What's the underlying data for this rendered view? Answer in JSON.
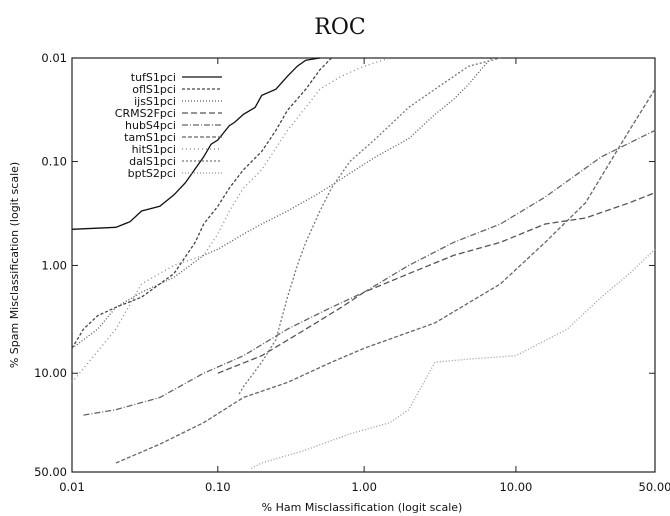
{
  "chart_data": {
    "type": "line",
    "title": "ROC",
    "xlabel": "% Ham Misclassification (logit scale)",
    "ylabel": "% Spam Misclassification (logit scale)",
    "x_ticks": [
      "0.01",
      "0.10",
      "1.00",
      "10.00",
      "50.00"
    ],
    "y_ticks": [
      "0.01",
      "0.10",
      "1.00",
      "10.00",
      "50.00"
    ],
    "xlim": [
      0.01,
      50
    ],
    "ylim": [
      0.01,
      50
    ],
    "y_inverted": true,
    "scale": "logit",
    "legend_position": "top-left",
    "grid": false,
    "series": [
      {
        "name": "tufS1pci",
        "color": "#111111",
        "dash": "",
        "points": [
          [
            0.01,
            0.45
          ],
          [
            0.02,
            0.43
          ],
          [
            0.025,
            0.38
          ],
          [
            0.03,
            0.3
          ],
          [
            0.04,
            0.27
          ],
          [
            0.05,
            0.21
          ],
          [
            0.06,
            0.16
          ],
          [
            0.08,
            0.09
          ],
          [
            0.09,
            0.068
          ],
          [
            0.1,
            0.062
          ],
          [
            0.12,
            0.045
          ],
          [
            0.13,
            0.042
          ],
          [
            0.15,
            0.035
          ],
          [
            0.18,
            0.03
          ],
          [
            0.2,
            0.023
          ],
          [
            0.25,
            0.02
          ],
          [
            0.3,
            0.015
          ],
          [
            0.35,
            0.012
          ],
          [
            0.4,
            0.0105
          ],
          [
            0.5,
            0.01
          ]
        ]
      },
      {
        "name": "oflS1pci",
        "color": "#444444",
        "dash": "3,2",
        "points": [
          [
            0.01,
            6.0
          ],
          [
            0.012,
            4.0
          ],
          [
            0.015,
            3.0
          ],
          [
            0.02,
            2.5
          ],
          [
            0.03,
            2.0
          ],
          [
            0.05,
            1.2
          ],
          [
            0.07,
            0.6
          ],
          [
            0.08,
            0.4
          ],
          [
            0.1,
            0.27
          ],
          [
            0.12,
            0.18
          ],
          [
            0.15,
            0.12
          ],
          [
            0.2,
            0.08
          ],
          [
            0.25,
            0.05
          ],
          [
            0.3,
            0.032
          ],
          [
            0.4,
            0.02
          ],
          [
            0.5,
            0.013
          ],
          [
            0.6,
            0.01
          ]
        ]
      },
      {
        "name": "ijsS1pci",
        "color": "#555555",
        "dash": "1,2",
        "points": [
          [
            0.01,
            6.0
          ],
          [
            0.015,
            4.0
          ],
          [
            0.02,
            2.5
          ],
          [
            0.03,
            1.8
          ],
          [
            0.05,
            1.3
          ],
          [
            0.08,
            0.8
          ],
          [
            0.1,
            0.7
          ],
          [
            0.15,
            0.5
          ],
          [
            0.2,
            0.4
          ],
          [
            0.3,
            0.3
          ],
          [
            0.5,
            0.2
          ],
          [
            0.8,
            0.13
          ],
          [
            1.2,
            0.09
          ],
          [
            2,
            0.06
          ],
          [
            3,
            0.035
          ],
          [
            4,
            0.025
          ],
          [
            5,
            0.018
          ],
          [
            6,
            0.013
          ],
          [
            7,
            0.01
          ]
        ]
      },
      {
        "name": "CRMS2Fpci",
        "color": "#555555",
        "dash": "6,3",
        "points": [
          [
            0.1,
            10.0
          ],
          [
            0.2,
            7.0
          ],
          [
            0.4,
            4.0
          ],
          [
            0.7,
            2.5
          ],
          [
            1.0,
            1.8
          ],
          [
            2.0,
            1.2
          ],
          [
            4.0,
            0.8
          ],
          [
            8.0,
            0.6
          ],
          [
            15,
            0.4
          ],
          [
            25,
            0.35
          ],
          [
            40,
            0.25
          ],
          [
            50,
            0.2
          ]
        ]
      },
      {
        "name": "hubS4pci",
        "color": "#666666",
        "dash": "6,2,1,2",
        "points": [
          [
            0.012,
            22.0
          ],
          [
            0.02,
            20.0
          ],
          [
            0.04,
            16.0
          ],
          [
            0.08,
            10.0
          ],
          [
            0.15,
            7.0
          ],
          [
            0.3,
            4.0
          ],
          [
            0.6,
            2.5
          ],
          [
            1.0,
            1.8
          ],
          [
            2.0,
            1.0
          ],
          [
            4.0,
            0.6
          ],
          [
            8.0,
            0.4
          ],
          [
            15,
            0.22
          ],
          [
            30,
            0.09
          ],
          [
            50,
            0.05
          ]
        ]
      },
      {
        "name": "tamS1pci",
        "color": "#666666",
        "dash": "4,2",
        "points": [
          [
            0.02,
            45.0
          ],
          [
            0.04,
            35.0
          ],
          [
            0.08,
            25.0
          ],
          [
            0.15,
            16.0
          ],
          [
            0.3,
            12.0
          ],
          [
            0.6,
            8.0
          ],
          [
            1.0,
            6.0
          ],
          [
            3.0,
            3.5
          ],
          [
            8.0,
            1.5
          ],
          [
            15,
            0.6
          ],
          [
            25,
            0.25
          ],
          [
            40,
            0.05
          ],
          [
            50,
            0.02
          ]
        ]
      },
      {
        "name": "hitS1pci",
        "color": "#888888",
        "dash": "1,3",
        "points": [
          [
            0.01,
            12.0
          ],
          [
            0.02,
            4.0
          ],
          [
            0.03,
            1.5
          ],
          [
            0.05,
            1.0
          ],
          [
            0.08,
            0.8
          ],
          [
            0.1,
            0.5
          ],
          [
            0.12,
            0.3
          ],
          [
            0.15,
            0.18
          ],
          [
            0.2,
            0.12
          ],
          [
            0.3,
            0.05
          ],
          [
            0.4,
            0.03
          ],
          [
            0.5,
            0.02
          ],
          [
            0.7,
            0.015
          ],
          [
            1.0,
            0.012
          ],
          [
            1.5,
            0.01
          ]
        ]
      },
      {
        "name": "dalS1pci",
        "color": "#777777",
        "dash": "2,2",
        "points": [
          [
            0.14,
            15.0
          ],
          [
            0.15,
            13.0
          ],
          [
            0.2,
            8.0
          ],
          [
            0.25,
            5.0
          ],
          [
            0.3,
            2.0
          ],
          [
            0.35,
            1.0
          ],
          [
            0.4,
            0.6
          ],
          [
            0.5,
            0.3
          ],
          [
            0.6,
            0.18
          ],
          [
            0.8,
            0.1
          ],
          [
            1.2,
            0.06
          ],
          [
            2.0,
            0.03
          ],
          [
            3.0,
            0.02
          ],
          [
            5.0,
            0.012
          ],
          [
            8.0,
            0.01
          ]
        ]
      },
      {
        "name": "bptS2pci",
        "color": "#999999",
        "dash": "1,2",
        "points": [
          [
            0.17,
            48.0
          ],
          [
            0.2,
            45.0
          ],
          [
            0.4,
            38.0
          ],
          [
            0.8,
            30.0
          ],
          [
            1.5,
            25.0
          ],
          [
            2,
            20.0
          ],
          [
            3,
            8.0
          ],
          [
            5,
            7.5
          ],
          [
            10,
            7.0
          ],
          [
            20,
            4.0
          ],
          [
            30,
            2.0
          ],
          [
            40,
            1.2
          ],
          [
            50,
            0.7
          ]
        ]
      }
    ]
  }
}
